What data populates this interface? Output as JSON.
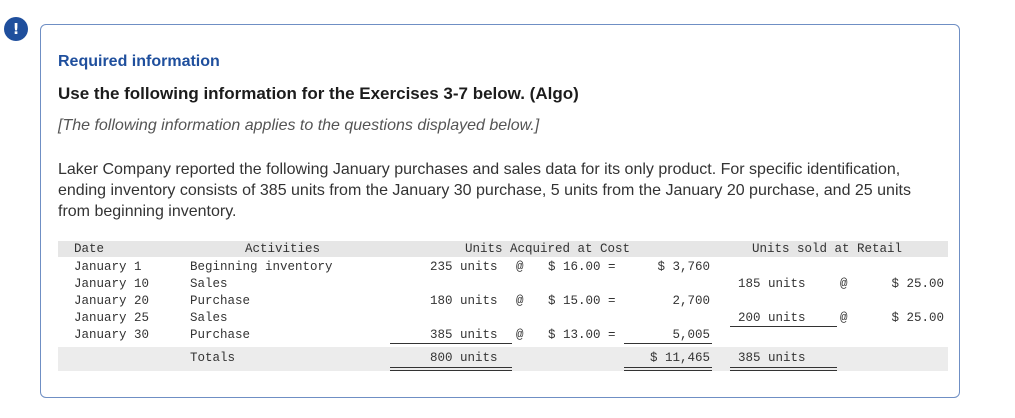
{
  "alert_icon": "exclamation-icon",
  "alert_symbol": "!",
  "colors": {
    "accent": "#1f4f9d",
    "card_border": "#6f8fc4"
  },
  "required_label": "Required information",
  "heading": "Use the following information for the Exercises 3-7 below. (Algo)",
  "applies_note": "[The following information applies to the questions displayed below.]",
  "paragraph": "Laker Company reported the following January purchases and sales data for its only product. For specific identification, ending inventory consists of 385 units from the January 30 purchase, 5 units from the January 20 purchase, and 25 units from beginning inventory.",
  "table": {
    "headers": {
      "date": "Date",
      "activities": "Activities",
      "acquired": "Units Acquired at Cost",
      "sold": "Units sold at Retail"
    },
    "rows": [
      {
        "date": "January 1",
        "activity": "Beginning inventory",
        "acq_units": "235 units",
        "acq_at": "@",
        "acq_cost": "$ 16.00 =",
        "acq_total": "$ 3,760",
        "sold_units": "",
        "sold_at": "",
        "sold_price": ""
      },
      {
        "date": "January 10",
        "activity": "Sales",
        "acq_units": "",
        "acq_at": "",
        "acq_cost": "",
        "acq_total": "",
        "sold_units": "185 units",
        "sold_at": "@",
        "sold_price": "$ 25.00"
      },
      {
        "date": "January 20",
        "activity": "Purchase",
        "acq_units": "180 units",
        "acq_at": "@",
        "acq_cost": "$ 15.00 =",
        "acq_total": "2,700",
        "sold_units": "",
        "sold_at": "",
        "sold_price": ""
      },
      {
        "date": "January 25",
        "activity": "Sales",
        "acq_units": "",
        "acq_at": "",
        "acq_cost": "",
        "acq_total": "",
        "sold_units": "200 units",
        "sold_at": "@",
        "sold_price": "$ 25.00"
      },
      {
        "date": "January 30",
        "activity": "Purchase",
        "acq_units": "385 units",
        "acq_at": "@",
        "acq_cost": "$ 13.00 =",
        "acq_total": "5,005",
        "sold_units": "",
        "sold_at": "",
        "sold_price": ""
      }
    ],
    "totals": {
      "label": "Totals",
      "acq_units": "800 units",
      "acq_total": "$ 11,465",
      "sold_units": "385 units"
    }
  }
}
